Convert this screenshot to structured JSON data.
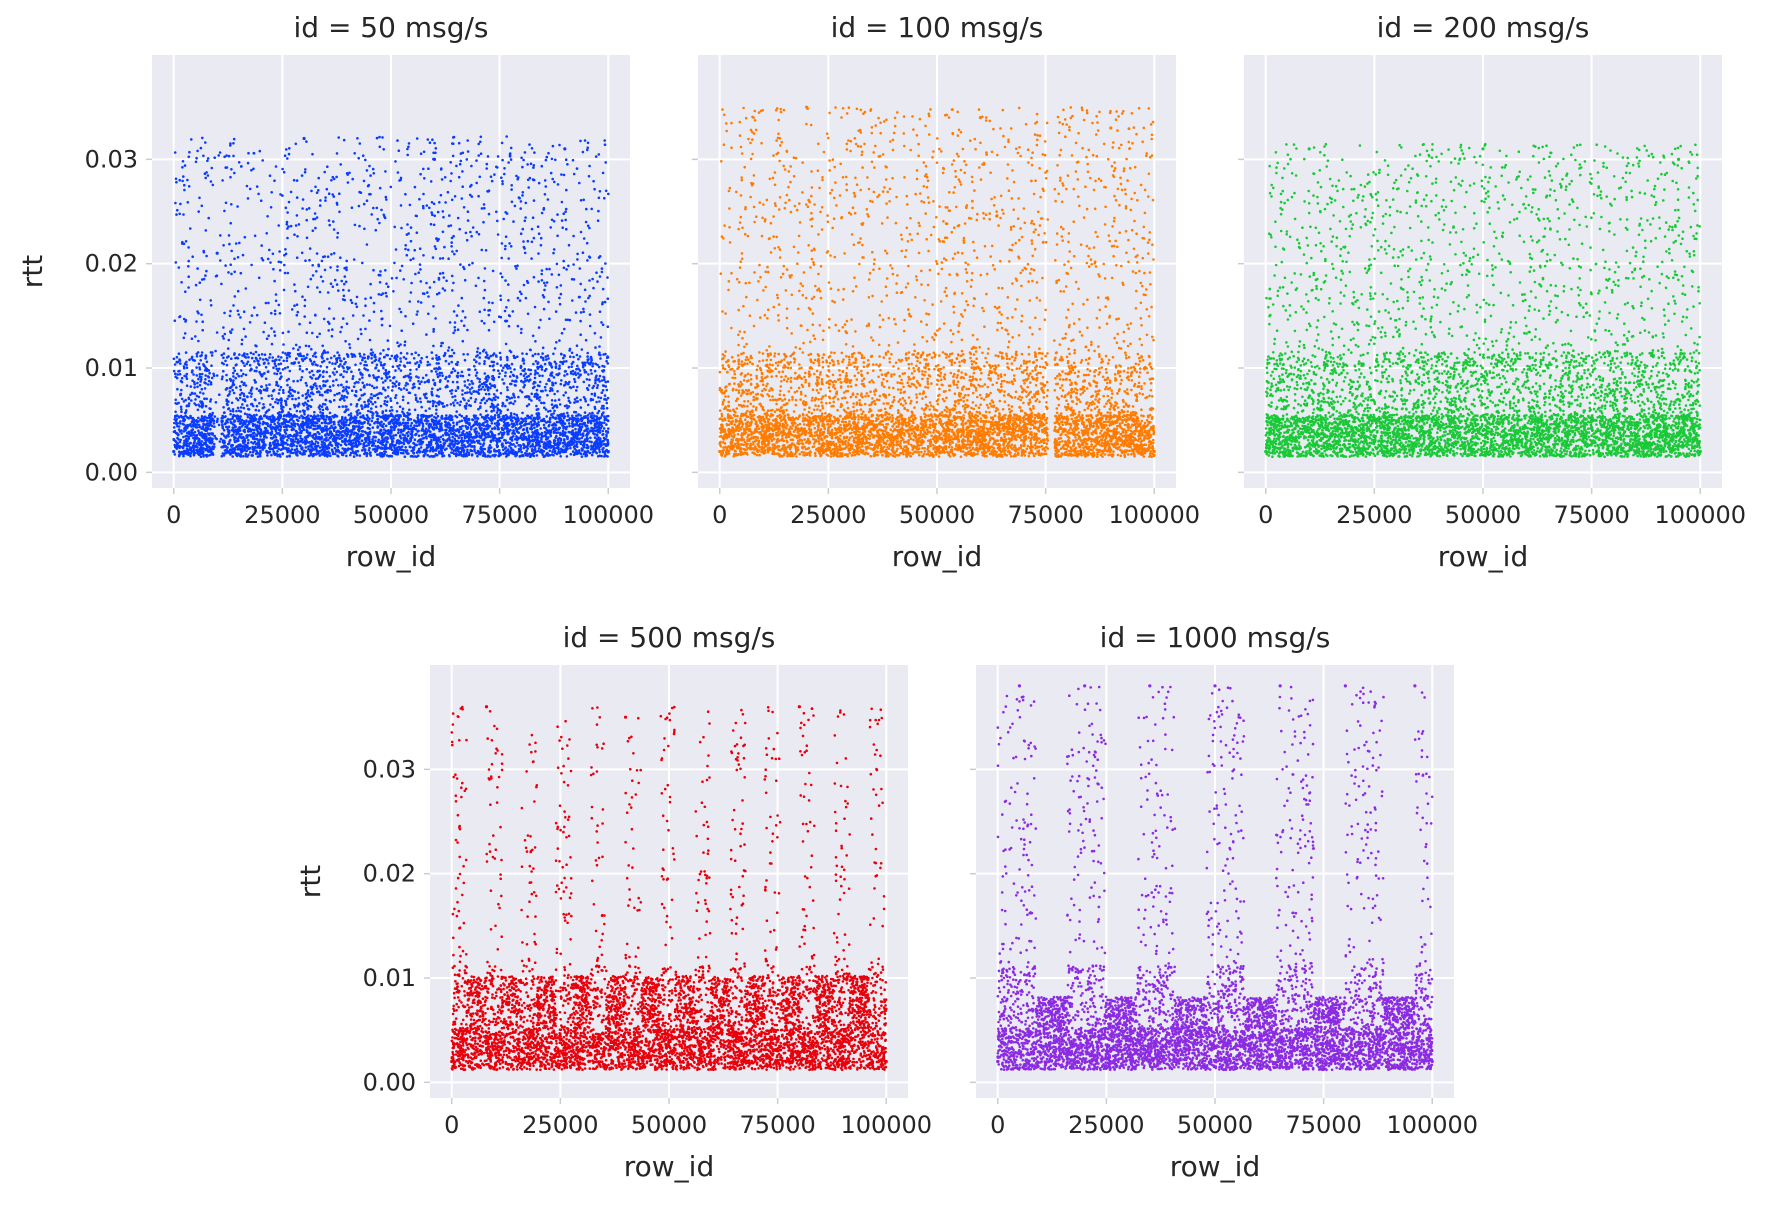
{
  "chart_data": [
    {
      "type": "scatter",
      "title": "id = 50 msg/s",
      "xlabel": "row_id",
      "ylabel": "rtt",
      "xlim": [
        -5000,
        105000
      ],
      "ylim": [
        -0.0015,
        0.04
      ],
      "xticks": [
        0,
        25000,
        50000,
        75000,
        100000
      ],
      "yticks": [
        0.0,
        0.01,
        0.02,
        0.03
      ],
      "color": "#0a3cff",
      "grid": true,
      "x_range": [
        0,
        100000
      ],
      "y_range": [
        0.0015,
        0.0322
      ],
      "pattern": "dense uniform band with concentration near 0.002-0.006; sparse gap near row_id 10000",
      "points": [
        {
          "x": 0,
          "y": 0.002
        },
        {
          "x": 25000,
          "y": 0.003
        },
        {
          "x": 50000,
          "y": 0.004
        },
        {
          "x": 75000,
          "y": 0.003
        },
        {
          "x": 100000,
          "y": 0.002
        },
        {
          "x": 10000,
          "y": 0.021
        },
        {
          "x": 30000,
          "y": 0.032
        },
        {
          "x": 60000,
          "y": 0.03
        },
        {
          "x": 90000,
          "y": 0.031
        }
      ]
    },
    {
      "type": "scatter",
      "title": "id = 100 msg/s",
      "xlabel": "row_id",
      "ylabel": "",
      "xlim": [
        -5000,
        105000
      ],
      "ylim": [
        -0.0015,
        0.04
      ],
      "xticks": [
        0,
        25000,
        50000,
        75000,
        100000
      ],
      "yticks": [
        0.0,
        0.01,
        0.02,
        0.03
      ],
      "color": "#ff7c00",
      "grid": true,
      "x_range": [
        0,
        100000
      ],
      "y_range": [
        0.0015,
        0.035
      ],
      "pattern": "dense uniform band with concentration near 0.002-0.006; narrow gap near row_id 76000",
      "points": [
        {
          "x": 0,
          "y": 0.002
        },
        {
          "x": 25000,
          "y": 0.004
        },
        {
          "x": 50000,
          "y": 0.003
        },
        {
          "x": 75000,
          "y": 0.005
        },
        {
          "x": 100000,
          "y": 0.002
        },
        {
          "x": 20000,
          "y": 0.035
        },
        {
          "x": 60000,
          "y": 0.034
        },
        {
          "x": 90000,
          "y": 0.033
        }
      ]
    },
    {
      "type": "scatter",
      "title": "id = 200 msg/s",
      "xlabel": "row_id",
      "ylabel": "",
      "xlim": [
        -5000,
        105000
      ],
      "ylim": [
        -0.0015,
        0.04
      ],
      "xticks": [
        0,
        25000,
        50000,
        75000,
        100000
      ],
      "yticks": [
        0.0,
        0.01,
        0.02,
        0.03
      ],
      "color": "#1ac938",
      "grid": true,
      "x_range": [
        0,
        100000
      ],
      "y_range": [
        0.0015,
        0.0315
      ],
      "pattern": "dense uniform band with faint vertical striping; concentration near 0.002-0.005",
      "points": [
        {
          "x": 0,
          "y": 0.002
        },
        {
          "x": 25000,
          "y": 0.003
        },
        {
          "x": 50000,
          "y": 0.004
        },
        {
          "x": 75000,
          "y": 0.003
        },
        {
          "x": 100000,
          "y": 0.002
        },
        {
          "x": 10000,
          "y": 0.031
        },
        {
          "x": 50000,
          "y": 0.031
        },
        {
          "x": 95000,
          "y": 0.03
        }
      ]
    },
    {
      "type": "scatter",
      "title": "id = 500 msg/s",
      "xlabel": "row_id",
      "ylabel": "rtt",
      "xlim": [
        -5000,
        105000
      ],
      "ylim": [
        -0.0015,
        0.04
      ],
      "xticks": [
        0,
        25000,
        50000,
        75000,
        100000
      ],
      "yticks": [
        0.0,
        0.01,
        0.02,
        0.03
      ],
      "color": "#e8000b",
      "grid": true,
      "x_range": [
        0,
        100000
      ],
      "y_range": [
        0.0012,
        0.036
      ],
      "pattern": "periodic vertical columns roughly every 8000 rows; dense band near 0.002-0.004",
      "points": [
        {
          "x": 0,
          "y": 0.002
        },
        {
          "x": 25000,
          "y": 0.003
        },
        {
          "x": 50000,
          "y": 0.002
        },
        {
          "x": 75000,
          "y": 0.003
        },
        {
          "x": 100000,
          "y": 0.002
        },
        {
          "x": 8000,
          "y": 0.036
        },
        {
          "x": 40000,
          "y": 0.035
        },
        {
          "x": 80000,
          "y": 0.036
        }
      ]
    },
    {
      "type": "scatter",
      "title": "id = 1000 msg/s",
      "xlabel": "row_id",
      "ylabel": "",
      "xlim": [
        -5000,
        105000
      ],
      "ylim": [
        -0.0015,
        0.04
      ],
      "xticks": [
        0,
        25000,
        50000,
        75000,
        100000
      ],
      "yticks": [
        0.0,
        0.01,
        0.02,
        0.03
      ],
      "color": "#8b2be2",
      "grid": true,
      "x_range": [
        0,
        100000
      ],
      "y_range": [
        0.0012,
        0.038
      ],
      "pattern": "seven tall columns reaching 0.038 separated by gaps where rtt stays below 0.009",
      "points": [
        {
          "x": 0,
          "y": 0.002
        },
        {
          "x": 25000,
          "y": 0.003
        },
        {
          "x": 50000,
          "y": 0.002
        },
        {
          "x": 75000,
          "y": 0.003
        },
        {
          "x": 100000,
          "y": 0.002
        },
        {
          "x": 5000,
          "y": 0.038
        },
        {
          "x": 20000,
          "y": 0.038
        },
        {
          "x": 35000,
          "y": 0.038
        },
        {
          "x": 50000,
          "y": 0.038
        },
        {
          "x": 65000,
          "y": 0.038
        },
        {
          "x": 80000,
          "y": 0.038
        },
        {
          "x": 96000,
          "y": 0.038
        }
      ]
    }
  ]
}
